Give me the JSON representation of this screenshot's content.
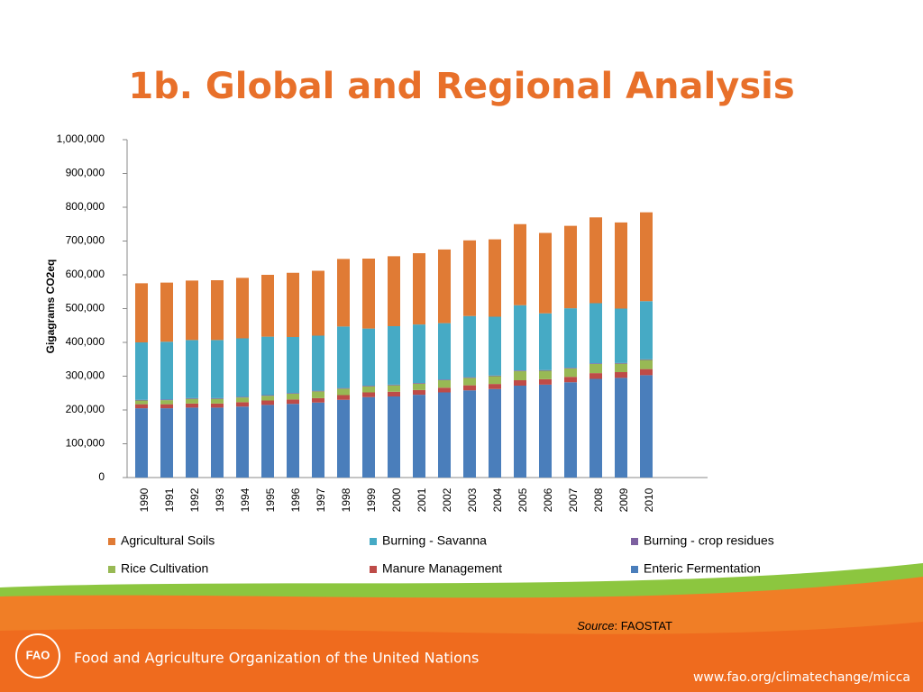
{
  "chart_data": {
    "type": "stacked_bar",
    "title": "1b. Global and Regional Analysis",
    "y_label": "Gigagrams CO2eq",
    "categories": [
      "1990",
      "1991",
      "1992",
      "1993",
      "1994",
      "1995",
      "1996",
      "1997",
      "1998",
      "1999",
      "2000",
      "2001",
      "2002",
      "2003",
      "2004",
      "2005",
      "2006",
      "2007",
      "2008",
      "2009",
      "2010"
    ],
    "series": [
      {
        "name": "Enteric Fermentation",
        "color": "#4a7ebb",
        "values": [
          205000,
          205000,
          207000,
          207000,
          210000,
          215000,
          218000,
          222000,
          230000,
          238000,
          240000,
          245000,
          252000,
          258000,
          262000,
          272000,
          275000,
          282000,
          292000,
          295000,
          303000
        ]
      },
      {
        "name": "Manure Management",
        "color": "#be4b48",
        "values": [
          12000,
          12000,
          12000,
          12000,
          13000,
          13000,
          13000,
          13000,
          14000,
          14000,
          14000,
          14000,
          14000,
          15000,
          15000,
          16000,
          16000,
          16000,
          17000,
          17000,
          18000
        ]
      },
      {
        "name": "Rice Cultivation",
        "color": "#98b954",
        "values": [
          11000,
          12000,
          14000,
          14000,
          14000,
          14000,
          17000,
          20000,
          19000,
          18000,
          19000,
          19000,
          22000,
          22000,
          23000,
          27000,
          25000,
          25000,
          27000,
          25000,
          27000
        ]
      },
      {
        "name": "Burning - crop residues",
        "color": "#7d60a0",
        "values": [
          2000,
          2000,
          2000,
          2000,
          2000,
          2000,
          2000,
          2000,
          2000,
          2000,
          2000,
          2000,
          2000,
          2000,
          2000,
          2000,
          2000,
          2000,
          2000,
          2000,
          2000
        ]
      },
      {
        "name": "Burning - Savanna",
        "color": "#46aac5",
        "values": [
          170000,
          171000,
          172000,
          172000,
          173000,
          173000,
          166000,
          163000,
          182000,
          169000,
          173000,
          173000,
          167000,
          181000,
          174000,
          193000,
          168000,
          176000,
          178000,
          161000,
          172000
        ]
      },
      {
        "name": "Agricultural Soils",
        "color": "#e07b35",
        "values": [
          175000,
          175000,
          176000,
          177000,
          179000,
          183000,
          190000,
          192000,
          200000,
          207000,
          207000,
          211000,
          218000,
          224000,
          229000,
          240000,
          238000,
          244000,
          254000,
          255000,
          263000
        ]
      }
    ],
    "ylim": [
      0,
      1000000
    ],
    "yticks": [
      0,
      {
        "value": 100000,
        "label": "100,000"
      },
      {
        "value": 200000,
        "label": "200,000"
      },
      {
        "value": 300000,
        "label": "300,000"
      },
      {
        "value": 400000,
        "label": "400,000"
      },
      {
        "value": 500000,
        "label": "500,000"
      },
      {
        "value": 600000,
        "label": "600,000"
      },
      {
        "value": 700000,
        "label": "700,000"
      },
      {
        "value": 800000,
        "label": "800,000"
      },
      {
        "value": 900000,
        "label": "900,000"
      },
      {
        "value": 1000000,
        "label": "1,000,000"
      }
    ],
    "grid": false,
    "legend": "bottom",
    "source_label": "Source",
    "source_text": ": FAOSTAT"
  },
  "footer": {
    "organization": "Food and Agriculture Organization of the United Nations",
    "url": "www.fao.org/climatechange/micca"
  }
}
